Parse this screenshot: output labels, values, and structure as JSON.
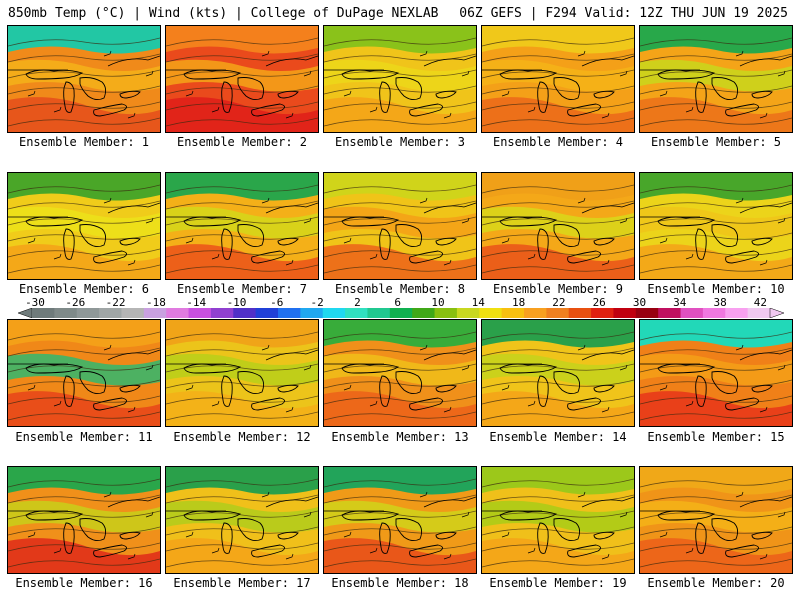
{
  "header": {
    "left": "850mb Temp (°C) | Wind (kts) | College of DuPage NEXLAB",
    "right": "06Z GEFS | F294 Valid: 12Z THU JUN 19 2025"
  },
  "colorbar": {
    "labels": [
      "-30",
      "-26",
      "-22",
      "-18",
      "-14",
      "-10",
      "-6",
      "-2",
      "2",
      "6",
      "10",
      "14",
      "18",
      "22",
      "26",
      "30",
      "34",
      "38",
      "42"
    ],
    "colors": [
      "#6f7b7b",
      "#7f8a89",
      "#8f9898",
      "#a0a6a6",
      "#b5b5b5",
      "#c9a0e0",
      "#e07be0",
      "#c850e0",
      "#9040d0",
      "#5030c8",
      "#2040d8",
      "#2070f0",
      "#20a8f0",
      "#20d8f0",
      "#30e0c0",
      "#20c890",
      "#10b050",
      "#40a818",
      "#88c010",
      "#c8d820",
      "#f0e010",
      "#f8c010",
      "#f8a020",
      "#f08020",
      "#e85010",
      "#e02010",
      "#c00010",
      "#980010",
      "#c01060",
      "#e050c0",
      "#f078e0",
      "#f8a0f0",
      "#f0c8f0"
    ]
  },
  "members": [
    {
      "label": "Ensemble Member: 1",
      "base": "#f08a1a",
      "top": "#22c7a4",
      "band": "#e6501c",
      "warm": "#f4b21a"
    },
    {
      "label": "Ensemble Member: 2",
      "base": "#ea4a1c",
      "top": "#f4801c",
      "band": "#e0201a",
      "warm": "#f4a418"
    },
    {
      "label": "Ensemble Member: 3",
      "base": "#f0c41a",
      "top": "#8ac21a",
      "band": "#f4a418",
      "warm": "#ecd81a"
    },
    {
      "label": "Ensemble Member: 4",
      "base": "#f4a018",
      "top": "#f0c81a",
      "band": "#ec6a1a",
      "warm": "#f4b418"
    },
    {
      "label": "Ensemble Member: 5",
      "base": "#f4a418",
      "top": "#28a84a",
      "band": "#ec721a",
      "warm": "#c8d81c"
    },
    {
      "label": "Ensemble Member: 6",
      "base": "#f0cc1a",
      "top": "#4aa628",
      "band": "#f4a418",
      "warm": "#ece21a"
    },
    {
      "label": "Ensemble Member: 7",
      "base": "#f4b018",
      "top": "#2aa64a",
      "band": "#ec581a",
      "warm": "#d4d81a"
    },
    {
      "label": "Ensemble Member: 8",
      "base": "#f0c418",
      "top": "#d0d41a",
      "band": "#ec681a",
      "warm": "#f4a018"
    },
    {
      "label": "Ensemble Member: 9",
      "base": "#f4a818",
      "top": "#f0a018",
      "band": "#ea561a",
      "warm": "#d8d81a"
    },
    {
      "label": "Ensemble Member: 10",
      "base": "#ecd41a",
      "top": "#48a62a",
      "band": "#f4a418",
      "warm": "#f0c41a"
    },
    {
      "label": "Ensemble Member: 11",
      "base": "#f08818",
      "top": "#f4a018",
      "band": "#e8481a",
      "warm": "#30b870"
    },
    {
      "label": "Ensemble Member: 12",
      "base": "#ecc41a",
      "top": "#f0a418",
      "band": "#f4b018",
      "warm": "#b8d01a"
    },
    {
      "label": "Ensemble Member: 13",
      "base": "#f0901a",
      "top": "#38ac3a",
      "band": "#ec641a",
      "warm": "#f0c01a"
    },
    {
      "label": "Ensemble Member: 14",
      "base": "#f0c41a",
      "top": "#2aa04a",
      "band": "#f4a418",
      "warm": "#c4d41c"
    },
    {
      "label": "Ensemble Member: 15",
      "base": "#f08018",
      "top": "#22d8b8",
      "band": "#e8381a",
      "warm": "#f4a018"
    },
    {
      "label": "Ensemble Member: 16",
      "base": "#f0901a",
      "top": "#2aa64a",
      "band": "#e0301a",
      "warm": "#c8d01a"
    },
    {
      "label": "Ensemble Member: 17",
      "base": "#f0c01a",
      "top": "#2aa04a",
      "band": "#f4a418",
      "warm": "#b0cc1c"
    },
    {
      "label": "Ensemble Member: 18",
      "base": "#f09a18",
      "top": "#22a45a",
      "band": "#e8501a",
      "warm": "#d0d41a"
    },
    {
      "label": "Ensemble Member: 19",
      "base": "#f0c01a",
      "top": "#9cc81a",
      "band": "#f4a418",
      "warm": "#a8cc18"
    },
    {
      "label": "Ensemble Member: 20",
      "base": "#f09418",
      "top": "#f0a818",
      "band": "#ec601a",
      "warm": "#f4b418"
    }
  ]
}
